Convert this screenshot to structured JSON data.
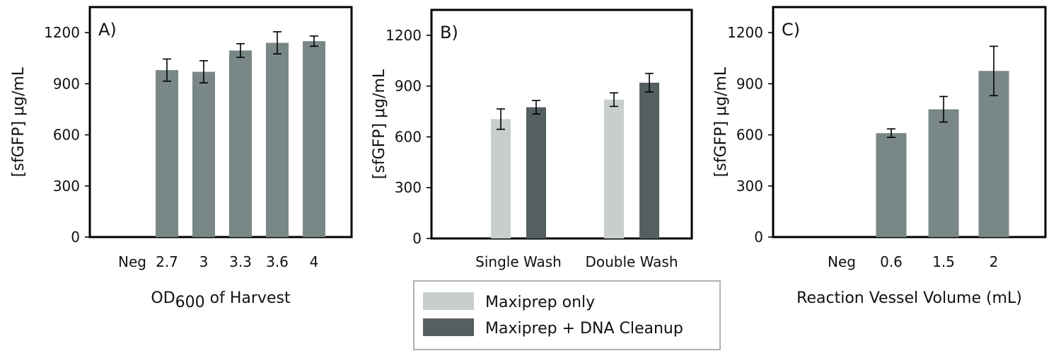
{
  "colors": {
    "bar_gray": "#7a8787",
    "maxiprep_only": "#c8cece",
    "maxiprep_cleanup": "#555e60",
    "frame": "#000000",
    "background": "#ffffff"
  },
  "legend": {
    "entries": [
      {
        "label": "Maxiprep only",
        "color": "#c8cece"
      },
      {
        "label": "Maxiprep + DNA Cleanup",
        "color": "#555e60"
      }
    ]
  },
  "chart_data": [
    {
      "panel": "A)",
      "type": "bar",
      "categories": [
        "Neg",
        "2.7",
        "3",
        "3.3",
        "3.6",
        "4"
      ],
      "values": [
        0,
        980,
        970,
        1095,
        1140,
        1150
      ],
      "errors": [
        0,
        65,
        65,
        40,
        65,
        30
      ],
      "xlabel": "OD",
      "xlabel_subscript": "600",
      "xlabel_suffix": " of Harvest",
      "ylabel": "[sfGFP] μg/mL",
      "yticks": [
        0,
        300,
        600,
        900,
        1200
      ],
      "ylim": [
        0,
        1350
      ],
      "color": "#7a8787"
    },
    {
      "panel": "B)",
      "type": "bar",
      "categories": [
        "Single Wash",
        "Double Wash"
      ],
      "series": [
        {
          "name": "Maxiprep only",
          "values": [
            705,
            820
          ],
          "errors": [
            60,
            40
          ],
          "color": "#c8cece"
        },
        {
          "name": "Maxiprep + DNA Cleanup",
          "values": [
            775,
            920
          ],
          "errors": [
            40,
            55
          ],
          "color": "#555e60"
        }
      ],
      "ylabel": "[sfGFP] μg/mL",
      "yticks": [
        0,
        300,
        600,
        900,
        1200
      ],
      "ylim": [
        0,
        1350
      ]
    },
    {
      "panel": "C)",
      "type": "bar",
      "categories": [
        "Neg",
        "0.6",
        "1.5",
        "2"
      ],
      "values": [
        0,
        610,
        750,
        975
      ],
      "errors": [
        0,
        25,
        75,
        145
      ],
      "xlabel": "Reaction Vessel Volume (mL)",
      "ylabel": "[sfGFP] μg/mL",
      "yticks": [
        0,
        300,
        600,
        900,
        1200
      ],
      "ylim": [
        0,
        1350
      ],
      "color": "#7a8787"
    }
  ]
}
